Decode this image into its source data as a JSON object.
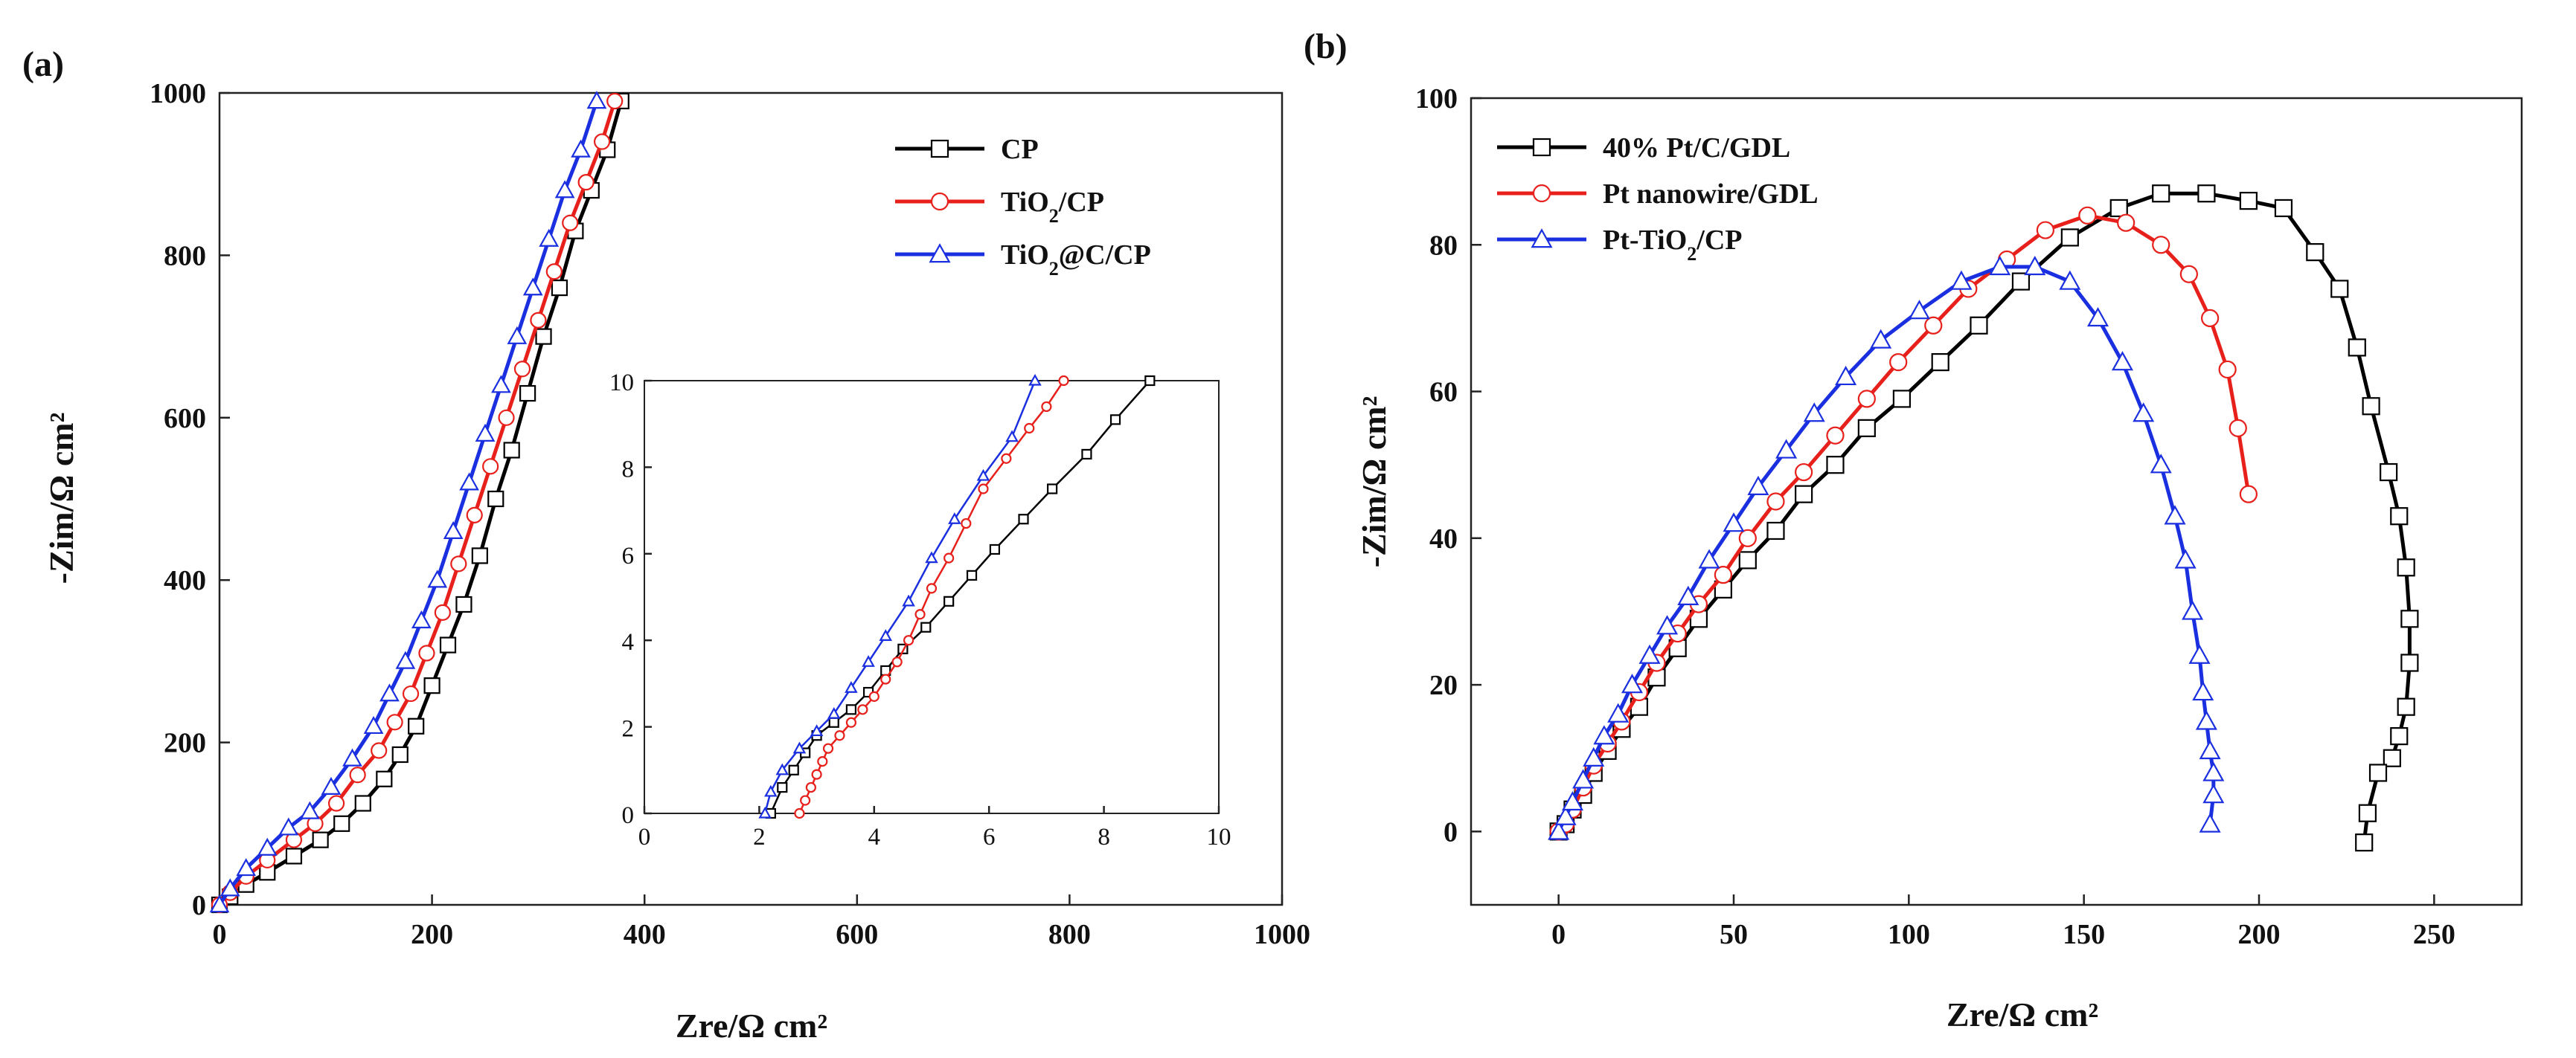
{
  "chart_data": [
    {
      "panel_label": "(a)",
      "type": "line",
      "xlabel": "Zre/Ω cm²",
      "ylabel": "-Zim/Ω cm²",
      "xlim": [
        0,
        1000
      ],
      "ylim": [
        0,
        1000
      ],
      "xticks": [
        0,
        200,
        400,
        600,
        800,
        1000
      ],
      "yticks": [
        0,
        200,
        400,
        600,
        800,
        1000
      ],
      "legend_position": "top-right",
      "series": [
        {
          "name": "CP",
          "name_main": "CP",
          "name_sub": "",
          "name_tail": "",
          "color": "#000000",
          "marker": "square",
          "x": [
            0,
            10,
            25,
            45,
            70,
            95,
            115,
            135,
            155,
            170,
            185,
            200,
            215,
            230,
            245,
            260,
            275,
            290,
            305,
            320,
            335,
            350,
            365,
            378
          ],
          "y": [
            0,
            10,
            25,
            40,
            60,
            80,
            100,
            125,
            155,
            185,
            220,
            270,
            320,
            370,
            430,
            500,
            560,
            630,
            700,
            760,
            830,
            880,
            930,
            990
          ]
        },
        {
          "name": "TiO2/CP",
          "name_main": "TiO",
          "name_sub": "2",
          "name_tail": "/CP",
          "color": "#e8201b",
          "marker": "circle",
          "x": [
            0,
            10,
            25,
            45,
            70,
            90,
            110,
            130,
            150,
            165,
            180,
            195,
            210,
            225,
            240,
            255,
            270,
            285,
            300,
            315,
            330,
            345,
            360,
            372
          ],
          "y": [
            0,
            15,
            35,
            55,
            80,
            100,
            125,
            160,
            190,
            225,
            260,
            310,
            360,
            420,
            480,
            540,
            600,
            660,
            720,
            780,
            840,
            890,
            940,
            990
          ]
        },
        {
          "name": "TiO2@C/CP",
          "name_main": "TiO",
          "name_sub": "2",
          "name_tail": "@C/CP",
          "color": "#1a2fe0",
          "marker": "triangle",
          "x": [
            0,
            10,
            25,
            45,
            65,
            85,
            105,
            125,
            145,
            160,
            175,
            190,
            205,
            220,
            235,
            250,
            265,
            280,
            295,
            310,
            325,
            340,
            355
          ],
          "y": [
            0,
            20,
            45,
            70,
            95,
            115,
            145,
            180,
            220,
            260,
            300,
            350,
            400,
            460,
            520,
            580,
            640,
            700,
            760,
            820,
            880,
            930,
            990
          ]
        }
      ],
      "inset": {
        "xlim": [
          0,
          10
        ],
        "ylim": [
          0,
          10
        ],
        "xticks": [
          0,
          2,
          4,
          6,
          8,
          10
        ],
        "yticks": [
          0,
          2,
          4,
          6,
          8,
          10
        ],
        "series": [
          {
            "name": "CP",
            "color": "#000000",
            "marker": "square",
            "x": [
              2.2,
              2.4,
              2.6,
              2.8,
              3.0,
              3.3,
              3.6,
              3.9,
              4.2,
              4.5,
              4.9,
              5.3,
              5.7,
              6.1,
              6.6,
              7.1,
              7.7,
              8.2,
              8.8
            ],
            "y": [
              0.0,
              0.6,
              1.0,
              1.4,
              1.8,
              2.1,
              2.4,
              2.8,
              3.3,
              3.8,
              4.3,
              4.9,
              5.5,
              6.1,
              6.8,
              7.5,
              8.3,
              9.1,
              10.0
            ]
          },
          {
            "name": "TiO2/CP",
            "color": "#e8201b",
            "marker": "circle",
            "x": [
              2.7,
              2.8,
              2.9,
              3.0,
              3.1,
              3.2,
              3.4,
              3.6,
              3.8,
              4.0,
              4.2,
              4.4,
              4.6,
              4.8,
              5.0,
              5.3,
              5.6,
              5.9,
              6.3,
              6.7,
              7.0,
              7.3
            ],
            "y": [
              0.0,
              0.3,
              0.6,
              0.9,
              1.2,
              1.5,
              1.8,
              2.1,
              2.4,
              2.7,
              3.1,
              3.5,
              4.0,
              4.6,
              5.2,
              5.9,
              6.7,
              7.5,
              8.2,
              8.9,
              9.4,
              10.0
            ]
          },
          {
            "name": "TiO2@C/CP",
            "color": "#1a2fe0",
            "marker": "triangle",
            "x": [
              2.1,
              2.2,
              2.4,
              2.7,
              3.0,
              3.3,
              3.6,
              3.9,
              4.2,
              4.6,
              5.0,
              5.4,
              5.9,
              6.4,
              6.8
            ],
            "y": [
              0.0,
              0.5,
              1.0,
              1.5,
              1.9,
              2.3,
              2.9,
              3.5,
              4.1,
              4.9,
              5.9,
              6.8,
              7.8,
              8.7,
              10.0
            ]
          }
        ]
      }
    },
    {
      "panel_label": "(b)",
      "type": "line",
      "xlabel": "Zre/Ω cm²",
      "ylabel": "-Zim/Ω cm²",
      "xlim": [
        -25,
        275
      ],
      "ylim": [
        -10,
        100
      ],
      "xticks": [
        0,
        50,
        100,
        150,
        200,
        250
      ],
      "yticks": [
        0,
        20,
        40,
        60,
        80,
        100
      ],
      "legend_position": "top-left",
      "series": [
        {
          "name": "40% Pt/C/GDL",
          "name_main": "40% Pt/C/GDL",
          "name_sub": "",
          "name_tail": "",
          "color": "#000000",
          "marker": "square",
          "x": [
            0,
            2,
            4,
            7,
            10,
            14,
            18,
            23,
            28,
            34,
            40,
            47,
            54,
            62,
            70,
            79,
            88,
            98,
            109,
            120,
            132,
            146,
            160,
            172,
            185,
            197,
            207,
            216,
            223,
            228,
            232,
            237,
            240,
            242,
            243,
            243,
            242,
            240,
            238,
            234,
            231,
            230
          ],
          "y": [
            0,
            1,
            3,
            5,
            8,
            11,
            14,
            17,
            21,
            25,
            29,
            33,
            37,
            41,
            46,
            50,
            55,
            59,
            64,
            69,
            75,
            81,
            85,
            87,
            87,
            86,
            85,
            79,
            74,
            66,
            58,
            49,
            43,
            36,
            29,
            23,
            17,
            13,
            10,
            8,
            2.5,
            -1.5
          ]
        },
        {
          "name": "Pt nanowire/GDL",
          "name_main": "Pt nanowire/GDL",
          "name_sub": "",
          "name_tail": "",
          "color": "#e8201b",
          "marker": "circle",
          "x": [
            0,
            2,
            4,
            7,
            10,
            14,
            18,
            23,
            28,
            34,
            40,
            47,
            54,
            62,
            70,
            79,
            88,
            97,
            107,
            117,
            128,
            139,
            151,
            162,
            172,
            180,
            186,
            191,
            194,
            197
          ],
          "y": [
            0,
            1,
            3,
            6,
            9,
            12,
            15,
            19,
            23,
            27,
            31,
            35,
            40,
            45,
            49,
            54,
            59,
            64,
            69,
            74,
            78,
            82,
            84,
            83,
            80,
            76,
            70,
            63,
            55,
            46
          ]
        },
        {
          "name": "Pt-TiO2/CP",
          "name_main": "Pt-TiO",
          "name_sub": "2",
          "name_tail": "/CP",
          "color": "#1a2fe0",
          "marker": "triangle",
          "x": [
            0,
            2,
            4,
            7,
            10,
            13,
            17,
            21,
            26,
            31,
            37,
            43,
            50,
            57,
            65,
            73,
            82,
            92,
            103,
            115,
            126,
            136,
            146,
            154,
            161,
            167,
            172,
            176,
            179,
            181,
            183,
            184,
            185,
            186,
            187,
            187,
            186
          ],
          "y": [
            0,
            2,
            4,
            7,
            10,
            13,
            16,
            20,
            24,
            28,
            32,
            37,
            42,
            47,
            52,
            57,
            62,
            67,
            71,
            75,
            77,
            77,
            75,
            70,
            64,
            57,
            50,
            43,
            37,
            30,
            24,
            19,
            15,
            11,
            8,
            5,
            1
          ]
        }
      ]
    }
  ]
}
